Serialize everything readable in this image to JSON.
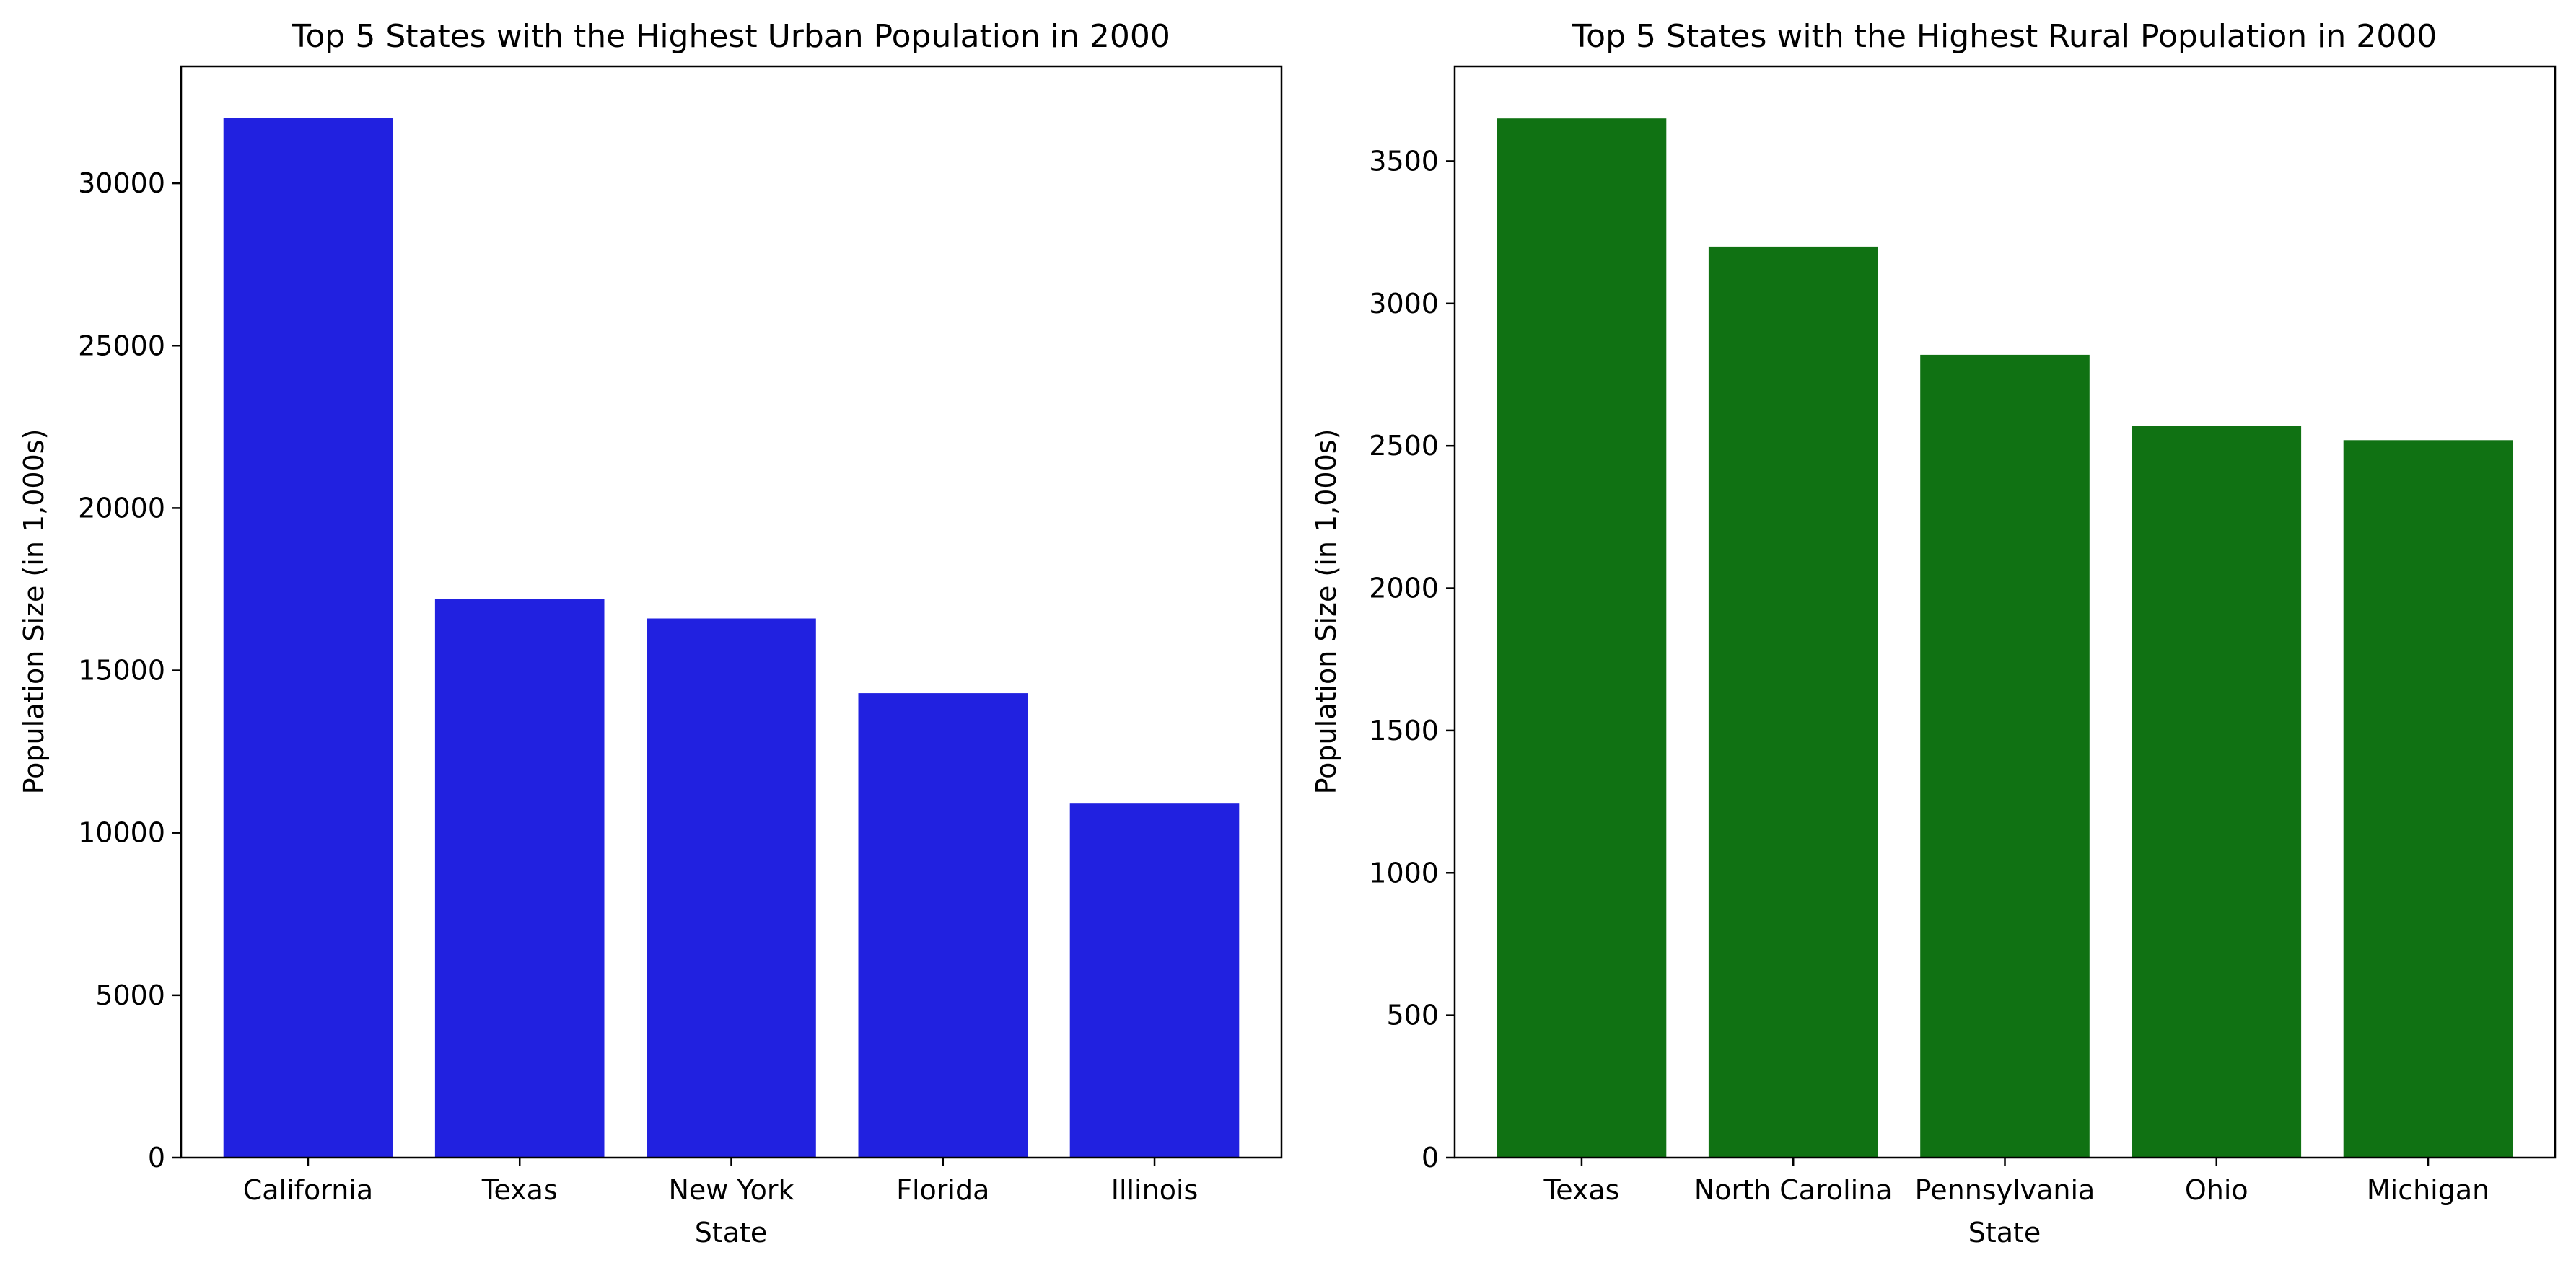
{
  "chart_data": [
    {
      "type": "bar",
      "title": "Top 5 States with the Highest Urban Population in 2000",
      "xlabel": "State",
      "ylabel": "Population Size (in 1,000s)",
      "categories": [
        "California",
        "Texas",
        "New York",
        "Florida",
        "Illinois"
      ],
      "values": [
        32000,
        17200,
        16600,
        14300,
        10900
      ],
      "ylim": [
        0,
        33600
      ],
      "yticks": [
        0,
        5000,
        10000,
        15000,
        20000,
        25000,
        30000
      ],
      "ytick_labels": [
        "0",
        "5000",
        "10000",
        "15000",
        "20000",
        "25000",
        "30000"
      ],
      "color": "#2121e0",
      "grid": false,
      "legend": "none"
    },
    {
      "type": "bar",
      "title": "Top 5 States with the Highest Rural Population in 2000",
      "xlabel": "State",
      "ylabel": "Population Size (in 1,000s)",
      "categories": [
        "Texas",
        "North Carolina",
        "Pennsylvania",
        "Ohio",
        "Michigan"
      ],
      "values": [
        3650,
        3200,
        2820,
        2570,
        2520
      ],
      "ylim": [
        0,
        3833
      ],
      "yticks": [
        0,
        500,
        1000,
        1500,
        2000,
        2500,
        3000,
        3500
      ],
      "ytick_labels": [
        "0",
        "500",
        "1000",
        "1500",
        "2000",
        "2500",
        "3000",
        "3500"
      ],
      "color": "#107213",
      "grid": false,
      "legend": "none"
    }
  ]
}
